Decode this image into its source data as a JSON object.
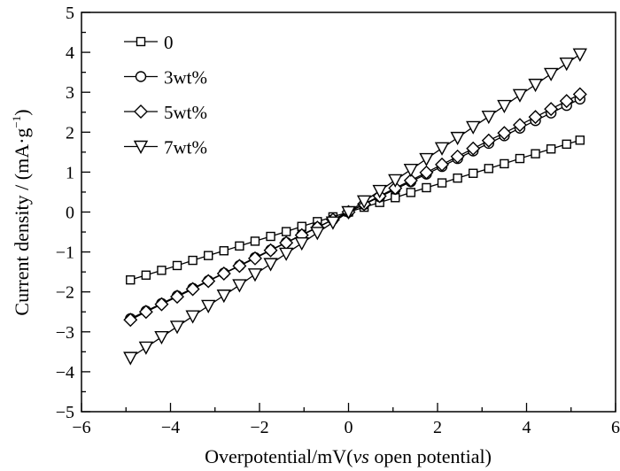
{
  "chart_data": {
    "type": "line",
    "title": "",
    "xlabel": "Overpotential/mV(",
    "xlabel_italic": "vs",
    "xlabel_tail": " open potential)",
    "ylabel": "Current density / (mA·g",
    "ylabel_sup": "−1",
    "ylabel_tail": ")",
    "xlim": [
      -6,
      6
    ],
    "ylim": [
      -5,
      5
    ],
    "xticks": [
      "−6",
      "−4",
      "−2",
      "0",
      "2",
      "4",
      "6"
    ],
    "yticks": [
      "−5",
      "−4",
      "−3",
      "−2",
      "−1",
      "0",
      "1",
      "2",
      "3",
      "4",
      "5"
    ],
    "grid": false,
    "legend_position": "top-left",
    "x": [
      -4.9,
      -4.55,
      -4.2,
      -3.85,
      -3.5,
      -3.15,
      -2.8,
      -2.45,
      -2.1,
      -1.75,
      -1.4,
      -1.05,
      -0.7,
      -0.35,
      0,
      0.35,
      0.7,
      1.05,
      1.4,
      1.75,
      2.1,
      2.45,
      2.8,
      3.15,
      3.5,
      3.85,
      4.2,
      4.55,
      4.9,
      5.2
    ],
    "series": [
      {
        "name": "0",
        "marker": "square",
        "values": [
          -1.7,
          -1.58,
          -1.46,
          -1.34,
          -1.21,
          -1.09,
          -0.97,
          -0.85,
          -0.73,
          -0.61,
          -0.49,
          -0.36,
          -0.24,
          -0.12,
          0,
          0.12,
          0.24,
          0.36,
          0.49,
          0.61,
          0.73,
          0.85,
          0.97,
          1.09,
          1.21,
          1.34,
          1.46,
          1.58,
          1.7,
          1.8
        ]
      },
      {
        "name": "3wt%",
        "marker": "circle",
        "values": [
          -2.67,
          -2.48,
          -2.29,
          -2.1,
          -1.91,
          -1.72,
          -1.53,
          -1.34,
          -1.14,
          -0.95,
          -0.76,
          -0.57,
          -0.38,
          -0.19,
          0,
          0.19,
          0.38,
          0.57,
          0.76,
          0.95,
          1.14,
          1.34,
          1.53,
          1.72,
          1.91,
          2.1,
          2.29,
          2.48,
          2.67,
          2.83
        ]
      },
      {
        "name": "5wt%",
        "marker": "diamond",
        "values": [
          -2.7,
          -2.5,
          -2.31,
          -2.12,
          -1.93,
          -1.73,
          -1.54,
          -1.35,
          -1.16,
          -0.96,
          -0.77,
          -0.58,
          -0.39,
          -0.19,
          0,
          0.2,
          0.4,
          0.6,
          0.79,
          0.99,
          1.19,
          1.39,
          1.59,
          1.79,
          1.98,
          2.18,
          2.38,
          2.58,
          2.78,
          2.95
        ]
      },
      {
        "name": "7wt%",
        "marker": "triangle-down",
        "values": [
          -3.65,
          -3.39,
          -3.13,
          -2.87,
          -2.61,
          -2.35,
          -2.09,
          -1.83,
          -1.56,
          -1.3,
          -1.04,
          -0.78,
          -0.52,
          -0.26,
          0,
          0.27,
          0.53,
          0.8,
          1.06,
          1.33,
          1.6,
          1.86,
          2.13,
          2.39,
          2.66,
          2.93,
          3.19,
          3.46,
          3.72,
          3.95
        ]
      }
    ]
  }
}
